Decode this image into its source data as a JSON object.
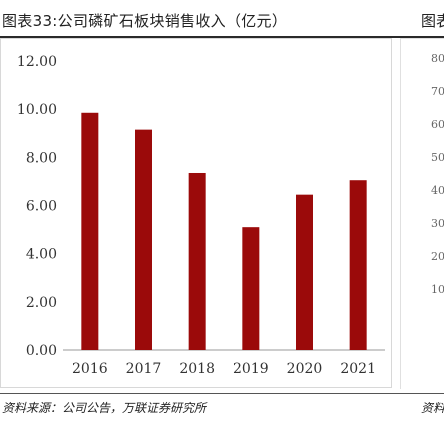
{
  "header": {
    "title": "图表33:公司磷矿石板块销售收入（亿元）",
    "peek_title": "图表"
  },
  "footer": {
    "source": "资料来源：公司公告，万联证券研究所",
    "peek_source": "资料"
  },
  "right_peek": {
    "ticks": [
      "80",
      "70",
      "60",
      "50",
      "40",
      "30",
      "20",
      "10"
    ]
  },
  "colors": {
    "bar": "#9b0a0a",
    "axis": "#999999",
    "text": "#333333"
  },
  "chart_data": {
    "type": "bar",
    "title": "图表33:公司磷矿石板块销售收入（亿元）",
    "categories": [
      "2016",
      "2017",
      "2018",
      "2019",
      "2020",
      "2021"
    ],
    "values": [
      9.85,
      9.15,
      7.35,
      5.1,
      6.45,
      7.05
    ],
    "yticks": [
      "0.00",
      "2.00",
      "4.00",
      "6.00",
      "8.00",
      "10.00",
      "12.00"
    ],
    "ylim": [
      0,
      12
    ],
    "xlabel": "",
    "ylabel": "",
    "grid": false,
    "legend": "none"
  }
}
